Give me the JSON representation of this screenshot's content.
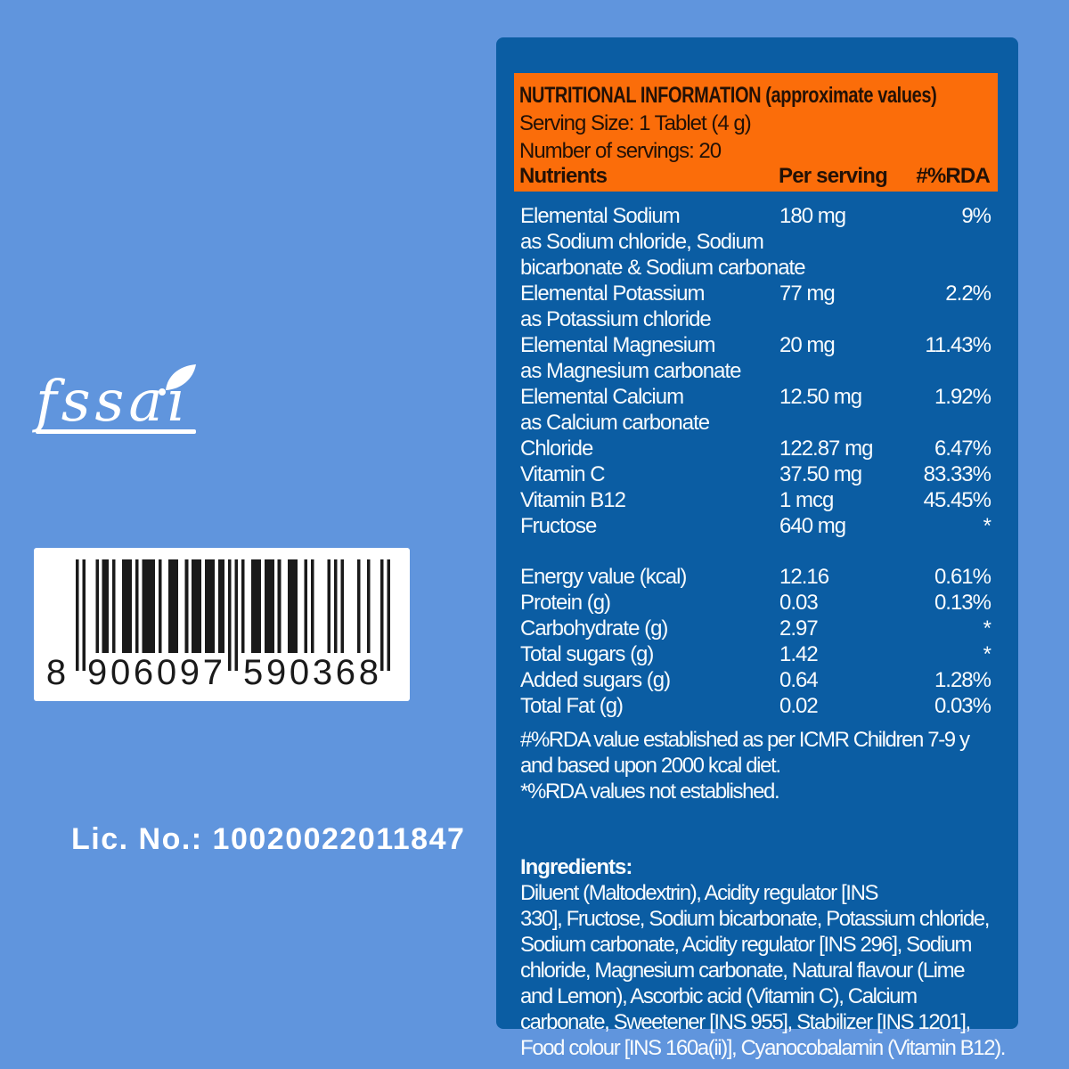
{
  "colors": {
    "background": "#6095DD",
    "panel_bg": "#0B5DA3",
    "header_bg": "#FB6D0A",
    "header_text": "#231106",
    "text_light": "#F8FBFD",
    "barcode_ink": "#1A1A1A"
  },
  "left": {
    "fssai": {
      "text": "fssai",
      "license": "Lic. No.: 10020022011847"
    },
    "barcode": {
      "first_digit": "8",
      "digits_left": "906097",
      "digits_right": "590368",
      "full_number": "8906097590368",
      "pattern": "10100010110100111010111101001110010111011101101010100111011101001110010100001010100001001000101"
    }
  },
  "panel": {
    "header": {
      "title": "NUTRITIONAL INFORMATION (approximate values)",
      "serving_size": "Serving Size: 1 Tablet (4 g)",
      "servings": "Number of servings: 20",
      "columns": [
        "Nutrients",
        "Per serving",
        "#%RDA"
      ]
    },
    "table": {
      "groups": [
        {
          "rows": [
            {
              "name": "Elemental Sodium",
              "sub": "as Sodium chloride, Sodium\nbicarbonate & Sodium carbonate",
              "value": "180 mg",
              "rda": "9%"
            },
            {
              "name": "Elemental Potassium",
              "sub": "as Potassium chloride",
              "value": "77 mg",
              "rda": "2.2%"
            },
            {
              "name": "Elemental Magnesium",
              "sub": "as Magnesium carbonate",
              "value": "20 mg",
              "rda": "11.43%"
            },
            {
              "name": "Elemental Calcium",
              "sub": "as Calcium carbonate",
              "value": "12.50 mg",
              "rda": "1.92%"
            },
            {
              "name": "Chloride",
              "sub": "",
              "value": "122.87 mg",
              "rda": "6.47%"
            },
            {
              "name": "Vitamin C",
              "sub": "",
              "value": "37.50 mg",
              "rda": "83.33%"
            },
            {
              "name": "Vitamin B12",
              "sub": "",
              "value": "1 mcg",
              "rda": "45.45%"
            },
            {
              "name": "Fructose",
              "sub": "",
              "value": "640 mg",
              "rda": "*"
            }
          ]
        },
        {
          "rows": [
            {
              "name": "Energy value (kcal)",
              "sub": "",
              "value": "12.16",
              "rda": "0.61%"
            },
            {
              "name": "Protein (g)",
              "sub": "",
              "value": "0.03",
              "rda": "0.13%"
            },
            {
              "name": "Carbohydrate (g)",
              "sub": "",
              "value": "2.97",
              "rda": "*"
            },
            {
              "name": "Total sugars (g)",
              "sub": "",
              "value": "1.42",
              "rda": "*"
            },
            {
              "name": "Added sugars (g)",
              "sub": "",
              "value": "0.64",
              "rda": "1.28%"
            },
            {
              "name": "Total Fat (g)",
              "sub": "",
              "value": "0.02",
              "rda": "0.03%"
            }
          ]
        }
      ]
    },
    "notes": "#%RDA value established as per ICMR Children 7-9 y\nand based upon 2000 kcal diet.\n*%RDA values not established.",
    "ingredients": {
      "label": "Ingredients:",
      "text": "Diluent (Maltodextrin), Acidity regulator [INS\n330], Fructose, Sodium bicarbonate, Potassium chloride,\nSodium carbonate, Acidity regulator [INS 296], Sodium\nchloride, Magnesium carbonate, Natural flavour (Lime\nand Lemon), Ascorbic acid (Vitamin C), Calcium\ncarbonate, Sweetener [INS 955], Stabilizer [INS 1201],\nFood colour [INS 160a(ii)], Cyanocobalamin (Vitamin B12)."
    }
  }
}
